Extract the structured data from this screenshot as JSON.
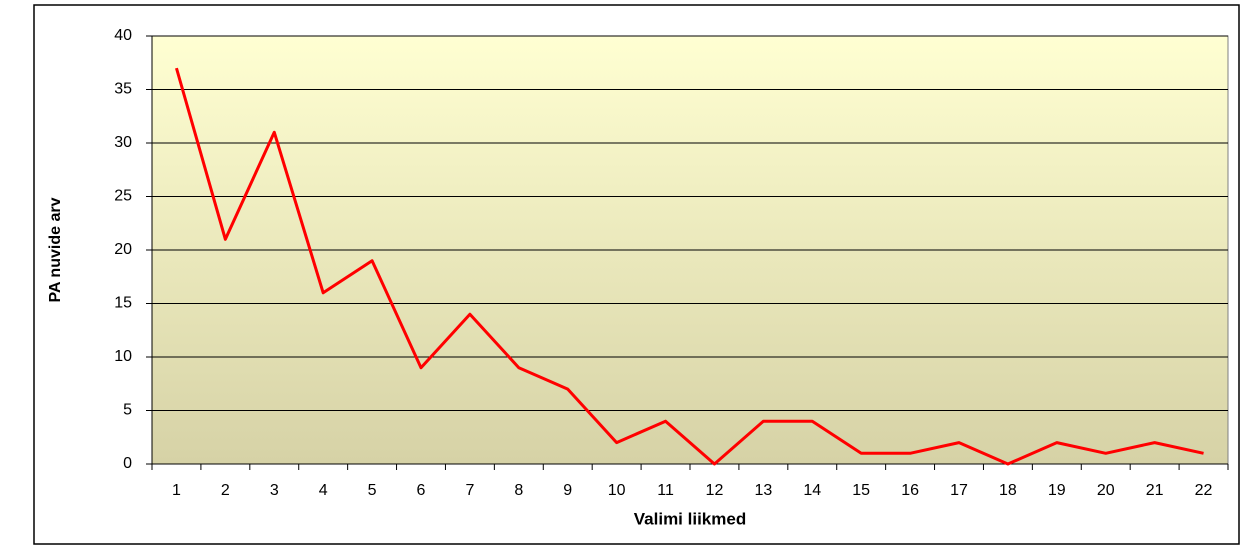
{
  "chart_data": {
    "type": "line",
    "x_label": "Valimi liikmed",
    "y_label": "PA nuvide arv",
    "categories": [
      "1",
      "2",
      "3",
      "4",
      "5",
      "6",
      "7",
      "8",
      "9",
      "10",
      "11",
      "12",
      "13",
      "14",
      "15",
      "16",
      "17",
      "18",
      "19",
      "20",
      "21",
      "22"
    ],
    "series": [
      {
        "name": "PA nuvide arv",
        "color": "#ff0000",
        "values": [
          37,
          21,
          31,
          16,
          19,
          9,
          14,
          9,
          7,
          2,
          4,
          0,
          4,
          4,
          1,
          1,
          2,
          0,
          2,
          1,
          2,
          1
        ]
      }
    ],
    "ylim": [
      0,
      40
    ],
    "yticks": [
      0,
      5,
      10,
      15,
      20,
      25,
      30,
      35,
      40
    ],
    "grid": true
  }
}
